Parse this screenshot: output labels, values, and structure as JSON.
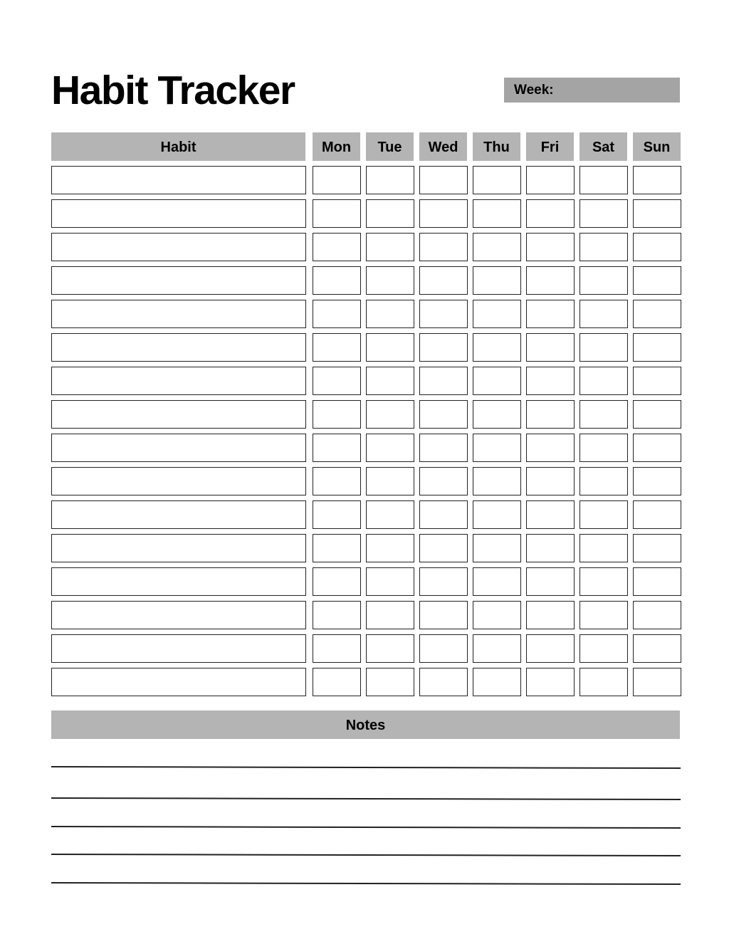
{
  "title": "Habit Tracker",
  "week_label": "Week:",
  "week_value": "",
  "columns": {
    "habit": "Habit",
    "days": [
      "Mon",
      "Tue",
      "Wed",
      "Thu",
      "Fri",
      "Sat",
      "Sun"
    ]
  },
  "habits": [
    "",
    "",
    "",
    "",
    "",
    "",
    "",
    "",
    "",
    "",
    "",
    "",
    "",
    "",
    "",
    ""
  ],
  "notes": {
    "label": "Notes",
    "lines": [
      "",
      "",
      "",
      "",
      ""
    ]
  },
  "colors": {
    "header_fill": "#b5b4b5",
    "week_fill": "#a5a4a5",
    "border": "#222222"
  }
}
